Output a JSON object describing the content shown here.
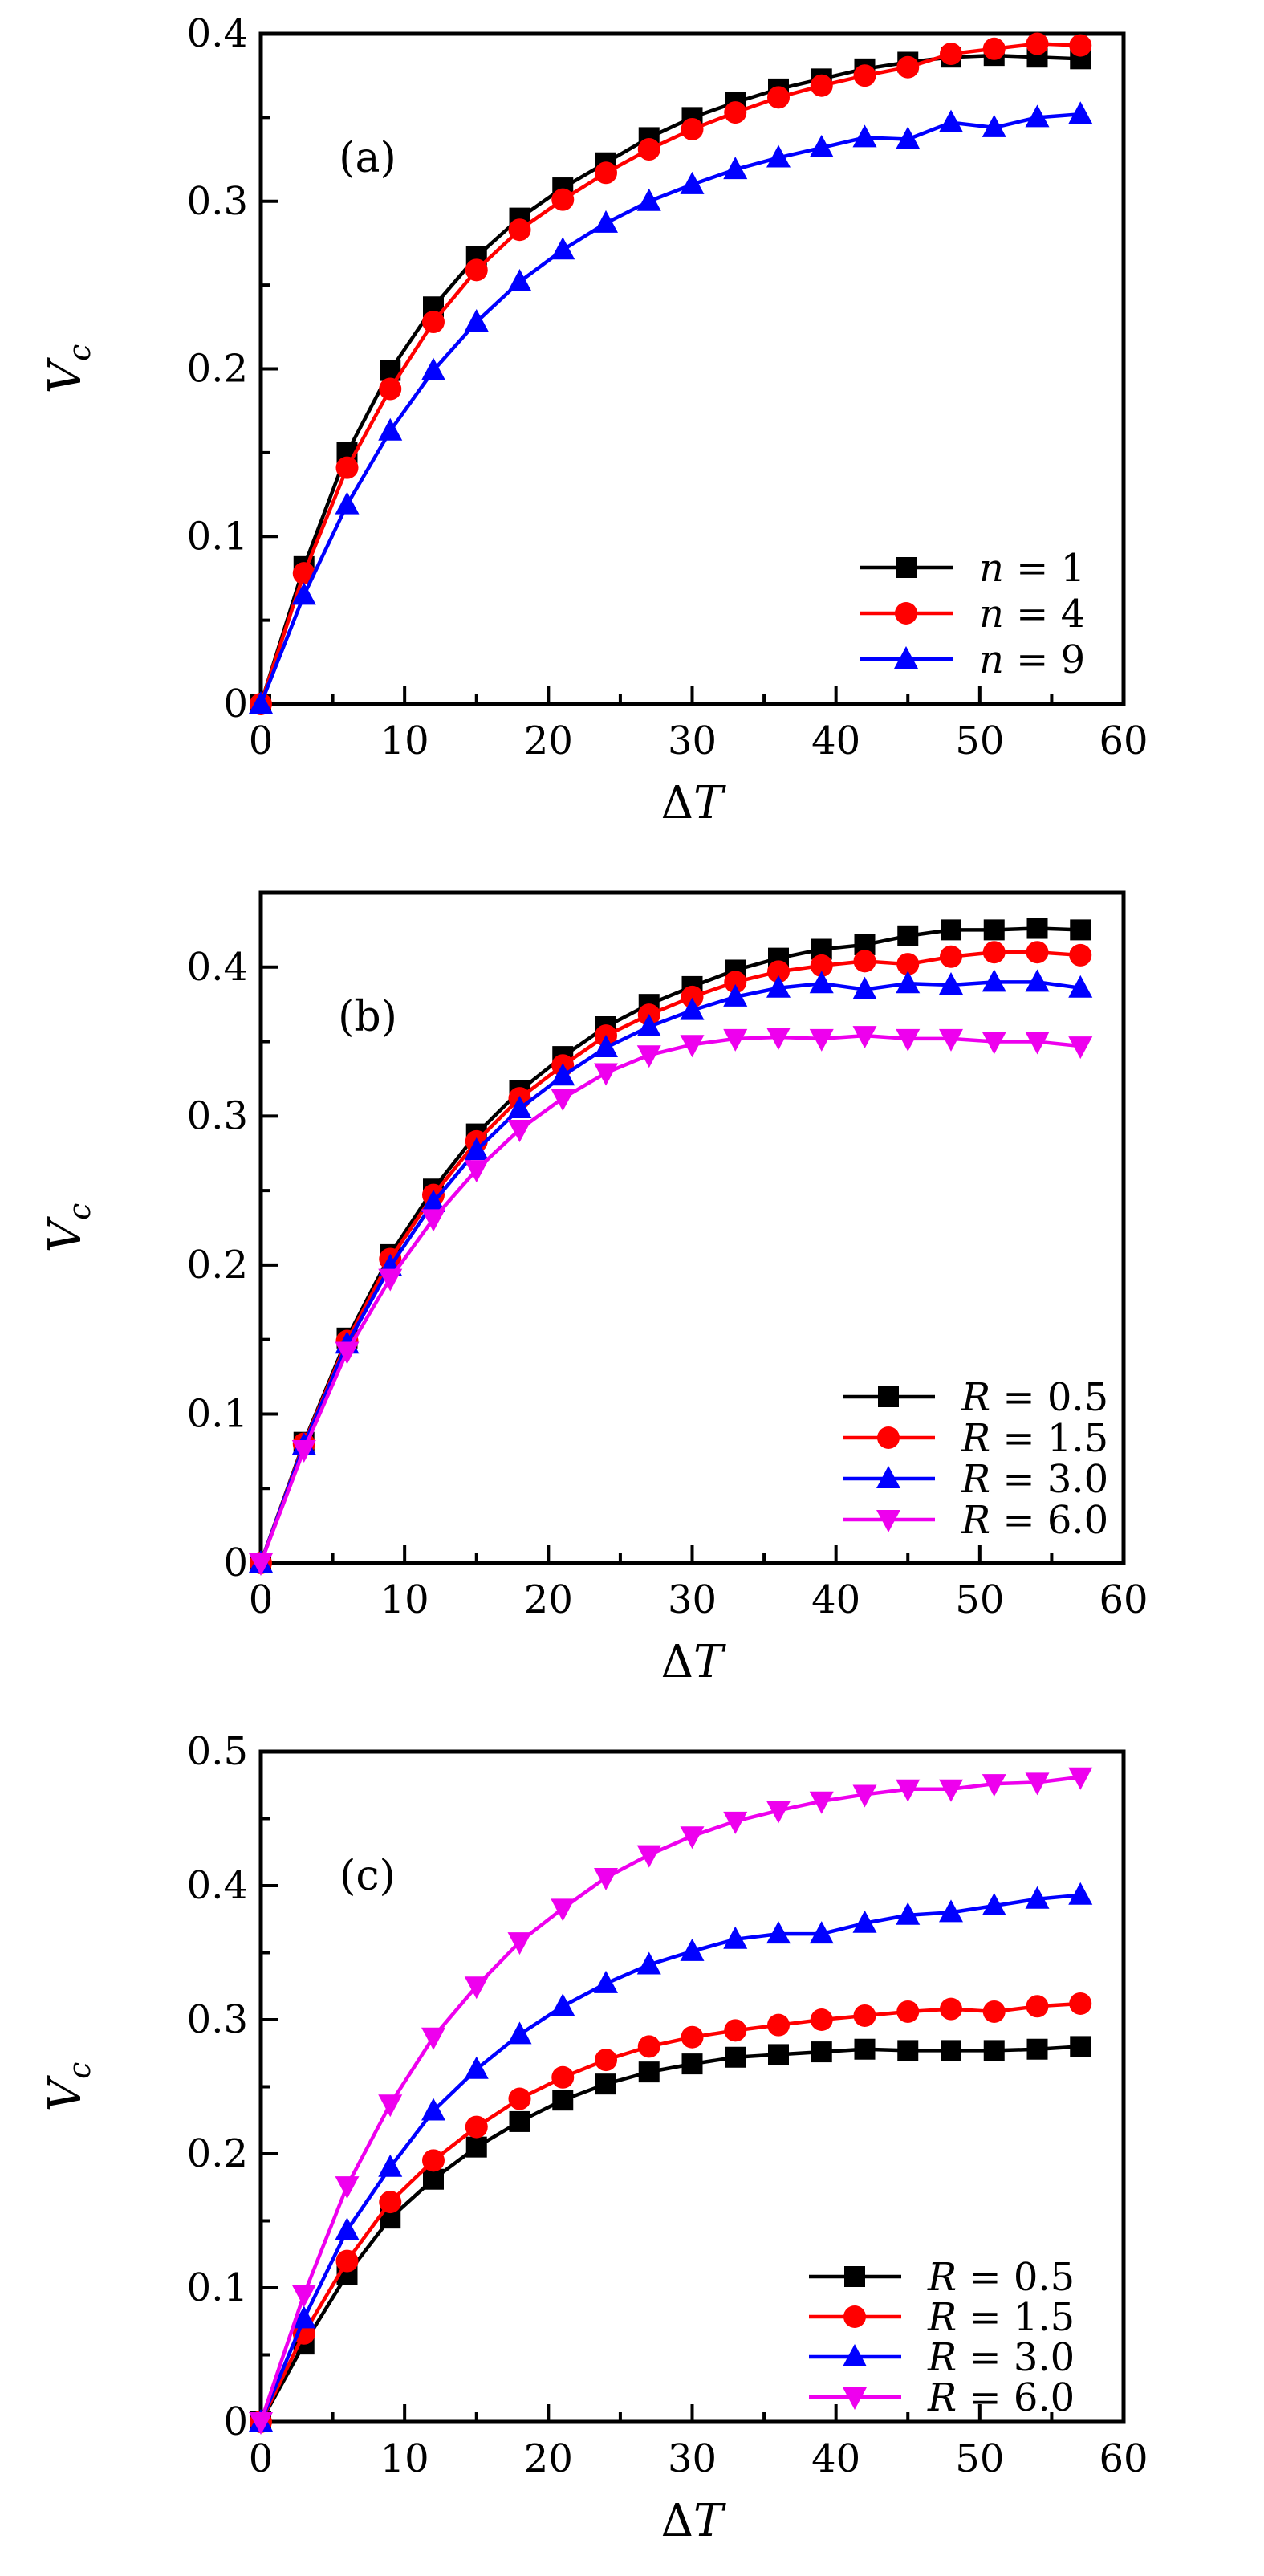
{
  "page": {
    "background": "#ffffff"
  },
  "chart_data": [
    {
      "type": "line",
      "panel_label": "(a)",
      "xlabel": "ΔT",
      "ylabel": "V_c",
      "xlim": [
        0,
        60
      ],
      "ylim": [
        0,
        0.4
      ],
      "x_tick_values": [
        0,
        10,
        20,
        30,
        40,
        50,
        60
      ],
      "x_tick_labels": [
        "0",
        "10",
        "20",
        "30",
        "40",
        "50",
        "60"
      ],
      "y_tick_values": [
        0,
        0.1,
        0.2,
        0.3,
        0.4
      ],
      "y_tick_labels": [
        "0",
        "0.1",
        "0.2",
        "0.3",
        "0.4"
      ],
      "x_minor_step": 5,
      "y_minor_step": 0.05,
      "grid": false,
      "legend_position": "inside-right-middle",
      "x": [
        0,
        3,
        6,
        9,
        12,
        15,
        18,
        21,
        24,
        27,
        30,
        33,
        36,
        39,
        42,
        45,
        48,
        51,
        54,
        57
      ],
      "series": [
        {
          "name": "n = 1",
          "color": "#000000",
          "marker": "square",
          "values": [
            0,
            0.082,
            0.15,
            0.199,
            0.237,
            0.267,
            0.29,
            0.308,
            0.323,
            0.338,
            0.35,
            0.359,
            0.367,
            0.373,
            0.379,
            0.383,
            0.386,
            0.387,
            0.386,
            0.385
          ]
        },
        {
          "name": "n = 4",
          "color": "#FF0000",
          "marker": "circle",
          "values": [
            0,
            0.078,
            0.141,
            0.188,
            0.228,
            0.259,
            0.283,
            0.301,
            0.317,
            0.331,
            0.343,
            0.353,
            0.362,
            0.369,
            0.375,
            0.38,
            0.388,
            0.391,
            0.394,
            0.393
          ]
        },
        {
          "name": "n = 9",
          "color": "#0000FF",
          "marker": "triangle-up",
          "values": [
            0,
            0.065,
            0.119,
            0.163,
            0.199,
            0.228,
            0.252,
            0.271,
            0.287,
            0.3,
            0.31,
            0.319,
            0.326,
            0.332,
            0.338,
            0.337,
            0.347,
            0.344,
            0.35,
            0.352
          ]
        }
      ]
    },
    {
      "type": "line",
      "panel_label": "(b)",
      "xlabel": "ΔT",
      "ylabel": "V_c",
      "xlim": [
        0,
        60
      ],
      "ylim": [
        0,
        0.45
      ],
      "x_tick_values": [
        0,
        10,
        20,
        30,
        40,
        50,
        60
      ],
      "x_tick_labels": [
        "0",
        "10",
        "20",
        "30",
        "40",
        "50",
        "60"
      ],
      "y_tick_values": [
        0,
        0.1,
        0.2,
        0.3,
        0.4
      ],
      "y_tick_labels": [
        "0",
        "0.1",
        "0.2",
        "0.3",
        "0.4"
      ],
      "x_minor_step": 5,
      "y_minor_step": 0.05,
      "grid": false,
      "legend_position": "inside-right-lower",
      "x": [
        0,
        3,
        6,
        9,
        12,
        15,
        18,
        21,
        24,
        27,
        30,
        33,
        36,
        39,
        42,
        45,
        48,
        51,
        54,
        57
      ],
      "series": [
        {
          "name": "R = 0.5",
          "color": "#000000",
          "marker": "square",
          "values": [
            0,
            0.081,
            0.151,
            0.207,
            0.251,
            0.288,
            0.317,
            0.34,
            0.36,
            0.375,
            0.387,
            0.398,
            0.406,
            0.412,
            0.415,
            0.421,
            0.425,
            0.425,
            0.426,
            0.425
          ]
        },
        {
          "name": "R = 1.5",
          "color": "#FF0000",
          "marker": "circle",
          "values": [
            0,
            0.08,
            0.149,
            0.204,
            0.247,
            0.283,
            0.312,
            0.334,
            0.354,
            0.368,
            0.38,
            0.39,
            0.397,
            0.401,
            0.404,
            0.402,
            0.407,
            0.41,
            0.41,
            0.408
          ]
        },
        {
          "name": "R = 3.0",
          "color": "#0000FF",
          "marker": "triangle-up",
          "values": [
            0,
            0.079,
            0.147,
            0.199,
            0.242,
            0.277,
            0.305,
            0.327,
            0.346,
            0.36,
            0.371,
            0.38,
            0.386,
            0.389,
            0.385,
            0.389,
            0.388,
            0.39,
            0.39,
            0.386
          ]
        },
        {
          "name": "R = 6.0",
          "color": "#EE00EE",
          "marker": "triangle-down",
          "values": [
            0,
            0.076,
            0.142,
            0.191,
            0.231,
            0.264,
            0.291,
            0.312,
            0.329,
            0.341,
            0.348,
            0.352,
            0.353,
            0.352,
            0.354,
            0.352,
            0.352,
            0.35,
            0.35,
            0.347
          ]
        }
      ]
    },
    {
      "type": "line",
      "panel_label": "(c)",
      "xlabel": "ΔT",
      "ylabel": "V_c",
      "xlim": [
        0,
        60
      ],
      "ylim": [
        0,
        0.5
      ],
      "x_tick_values": [
        0,
        10,
        20,
        30,
        40,
        50,
        60
      ],
      "x_tick_labels": [
        "0",
        "10",
        "20",
        "30",
        "40",
        "50",
        "60"
      ],
      "y_tick_values": [
        0,
        0.1,
        0.2,
        0.3,
        0.4,
        0.5
      ],
      "y_tick_labels": [
        "0",
        "0.1",
        "0.2",
        "0.3",
        "0.4",
        "0.5"
      ],
      "x_minor_step": 5,
      "y_minor_step": 0.05,
      "grid": false,
      "legend_position": "inside-right-lower",
      "x": [
        0,
        3,
        6,
        9,
        12,
        15,
        18,
        21,
        24,
        27,
        30,
        33,
        36,
        39,
        42,
        45,
        48,
        51,
        54,
        57
      ],
      "series": [
        {
          "name": "R = 0.5",
          "color": "#000000",
          "marker": "square",
          "values": [
            0,
            0.058,
            0.11,
            0.152,
            0.181,
            0.205,
            0.224,
            0.24,
            0.252,
            0.261,
            0.267,
            0.272,
            0.274,
            0.276,
            0.278,
            0.277,
            0.277,
            0.277,
            0.278,
            0.28
          ]
        },
        {
          "name": "R = 1.5",
          "color": "#FF0000",
          "marker": "circle",
          "values": [
            0,
            0.066,
            0.12,
            0.164,
            0.195,
            0.22,
            0.241,
            0.257,
            0.27,
            0.28,
            0.287,
            0.292,
            0.296,
            0.3,
            0.303,
            0.306,
            0.308,
            0.306,
            0.31,
            0.312
          ]
        },
        {
          "name": "R = 3.0",
          "color": "#0000FF",
          "marker": "triangle-up",
          "values": [
            0,
            0.077,
            0.143,
            0.19,
            0.232,
            0.263,
            0.289,
            0.31,
            0.327,
            0.341,
            0.351,
            0.36,
            0.364,
            0.364,
            0.372,
            0.378,
            0.38,
            0.385,
            0.39,
            0.393
          ]
        },
        {
          "name": "R = 6.0",
          "color": "#EE00EE",
          "marker": "triangle-down",
          "values": [
            0,
            0.095,
            0.176,
            0.237,
            0.287,
            0.325,
            0.358,
            0.383,
            0.406,
            0.423,
            0.437,
            0.448,
            0.456,
            0.463,
            0.468,
            0.472,
            0.472,
            0.476,
            0.477,
            0.481
          ]
        }
      ]
    }
  ]
}
